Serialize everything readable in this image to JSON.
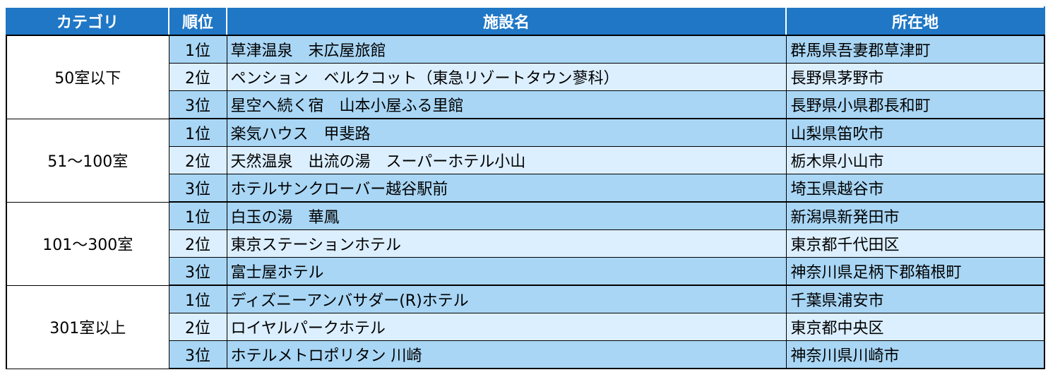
{
  "headers": {
    "category": "カテゴリ",
    "rank": "順位",
    "facility": "施設名",
    "location": "所在地"
  },
  "groups": [
    {
      "category": "50室以下",
      "rows": [
        {
          "rank": "1位",
          "name": "草津温泉　末広屋旅館",
          "location": "群馬県吾妻郡草津町"
        },
        {
          "rank": "2位",
          "name": "ペンション　ベルクコット（東急リゾートタウン蓼科）",
          "location": "長野県茅野市"
        },
        {
          "rank": "3位",
          "name": "星空へ続く宿　山本小屋ふる里館",
          "location": "長野県小県郡長和町"
        }
      ]
    },
    {
      "category": "51～100室",
      "rows": [
        {
          "rank": "1位",
          "name": "楽気ハウス　甲斐路",
          "location": "山梨県笛吹市"
        },
        {
          "rank": "2位",
          "name": "天然温泉　出流の湯　スーパーホテル小山",
          "location": "栃木県小山市"
        },
        {
          "rank": "3位",
          "name": "ホテルサンクローバー越谷駅前",
          "location": "埼玉県越谷市"
        }
      ]
    },
    {
      "category": "101～300室",
      "rows": [
        {
          "rank": "1位",
          "name": "白玉の湯　華鳳",
          "location": "新潟県新発田市"
        },
        {
          "rank": "2位",
          "name": "東京ステーションホテル",
          "location": "東京都千代田区"
        },
        {
          "rank": "3位",
          "name": "富士屋ホテル",
          "location": "神奈川県足柄下郡箱根町"
        }
      ]
    },
    {
      "category": "301室以上",
      "rows": [
        {
          "rank": "1位",
          "name": "ディズニーアンバサダー(R)ホテル",
          "location": "千葉県浦安市"
        },
        {
          "rank": "2位",
          "name": "ロイヤルパークホテル",
          "location": "東京都中央区"
        },
        {
          "rank": "3位",
          "name": "ホテルメトロポリタン 川崎",
          "location": "神奈川県川崎市"
        }
      ]
    }
  ]
}
